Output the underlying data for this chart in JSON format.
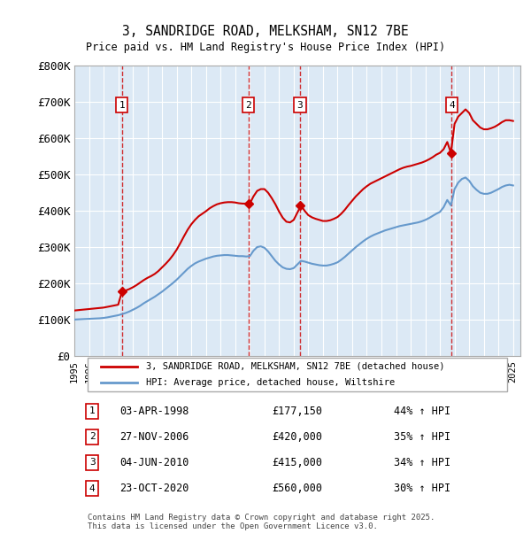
{
  "title": "3, SANDRIDGE ROAD, MELKSHAM, SN12 7BE",
  "subtitle": "Price paid vs. HM Land Registry's House Price Index (HPI)",
  "legend_line1": "3, SANDRIDGE ROAD, MELKSHAM, SN12 7BE (detached house)",
  "legend_line2": "HPI: Average price, detached house, Wiltshire",
  "footer": "Contains HM Land Registry data © Crown copyright and database right 2025.\nThis data is licensed under the Open Government Licence v3.0.",
  "ylim": [
    0,
    800000
  ],
  "yticks": [
    0,
    100000,
    200000,
    300000,
    400000,
    500000,
    600000,
    700000,
    800000
  ],
  "ytick_labels": [
    "£0",
    "£100K",
    "£200K",
    "£300K",
    "£400K",
    "£500K",
    "£600K",
    "£700K",
    "£800K"
  ],
  "xlim_start": 1995.0,
  "xlim_end": 2025.5,
  "background_color": "#dce9f5",
  "plot_background": "#dce9f5",
  "grid_color": "#ffffff",
  "red_color": "#cc0000",
  "blue_color": "#6699cc",
  "sale_points": [
    {
      "num": 1,
      "date": "03-APR-1998",
      "year": 1998.25,
      "price": 177150,
      "pct": "44%",
      "dir": "↑"
    },
    {
      "num": 2,
      "date": "27-NOV-2006",
      "year": 2006.9,
      "price": 420000,
      "pct": "35%",
      "dir": "↑"
    },
    {
      "num": 3,
      "date": "04-JUN-2010",
      "year": 2010.42,
      "price": 415000,
      "pct": "34%",
      "dir": "↑"
    },
    {
      "num": 4,
      "date": "23-OCT-2020",
      "year": 2020.8,
      "price": 560000,
      "pct": "30%",
      "dir": "↑"
    }
  ],
  "table_rows": [
    {
      "num": 1,
      "date": "03-APR-1998",
      "price": "£177,150",
      "pct": "44% ↑ HPI"
    },
    {
      "num": 2,
      "date": "27-NOV-2006",
      "price": "£420,000",
      "pct": "35% ↑ HPI"
    },
    {
      "num": 3,
      "date": "04-JUN-2010",
      "price": "£415,000",
      "pct": "34% ↑ HPI"
    },
    {
      "num": 4,
      "date": "23-OCT-2020",
      "price": "£560,000",
      "pct": "30% ↑ HPI"
    }
  ],
  "red_line_x": [
    1995.0,
    1995.25,
    1995.5,
    1995.75,
    1996.0,
    1996.25,
    1996.5,
    1996.75,
    1997.0,
    1997.25,
    1997.5,
    1997.75,
    1998.0,
    1998.25,
    1998.5,
    1998.75,
    1999.0,
    1999.25,
    1999.5,
    1999.75,
    2000.0,
    2000.25,
    2000.5,
    2000.75,
    2001.0,
    2001.25,
    2001.5,
    2001.75,
    2002.0,
    2002.25,
    2002.5,
    2002.75,
    2003.0,
    2003.25,
    2003.5,
    2003.75,
    2004.0,
    2004.25,
    2004.5,
    2004.75,
    2005.0,
    2005.25,
    2005.5,
    2005.75,
    2006.0,
    2006.25,
    2006.5,
    2006.75,
    2007.0,
    2007.25,
    2007.5,
    2007.75,
    2008.0,
    2008.25,
    2008.5,
    2008.75,
    2009.0,
    2009.25,
    2009.5,
    2009.75,
    2010.0,
    2010.25,
    2010.5,
    2010.75,
    2011.0,
    2011.25,
    2011.5,
    2011.75,
    2012.0,
    2012.25,
    2012.5,
    2012.75,
    2013.0,
    2013.25,
    2013.5,
    2013.75,
    2014.0,
    2014.25,
    2014.5,
    2014.75,
    2015.0,
    2015.25,
    2015.5,
    2015.75,
    2016.0,
    2016.25,
    2016.5,
    2016.75,
    2017.0,
    2017.25,
    2017.5,
    2017.75,
    2018.0,
    2018.25,
    2018.5,
    2018.75,
    2019.0,
    2019.25,
    2019.5,
    2019.75,
    2020.0,
    2020.25,
    2020.5,
    2020.75,
    2021.0,
    2021.25,
    2021.5,
    2021.75,
    2022.0,
    2022.25,
    2022.5,
    2022.75,
    2023.0,
    2023.25,
    2023.5,
    2023.75,
    2024.0,
    2024.25,
    2024.5,
    2024.75,
    2025.0
  ],
  "red_line_y": [
    125000,
    126000,
    127000,
    128000,
    129000,
    130000,
    131000,
    132000,
    133000,
    135000,
    137000,
    139000,
    141000,
    177150,
    180000,
    184000,
    189000,
    195000,
    202000,
    209000,
    215000,
    220000,
    226000,
    234000,
    244000,
    254000,
    265000,
    278000,
    293000,
    311000,
    330000,
    348000,
    363000,
    375000,
    385000,
    392000,
    399000,
    407000,
    413000,
    418000,
    421000,
    423000,
    424000,
    424000,
    423000,
    421000,
    420000,
    420000,
    420000,
    440000,
    455000,
    460000,
    460000,
    450000,
    435000,
    418000,
    398000,
    381000,
    370000,
    368000,
    375000,
    395000,
    415000,
    400000,
    388000,
    382000,
    378000,
    375000,
    372000,
    372000,
    374000,
    378000,
    383000,
    392000,
    403000,
    416000,
    428000,
    440000,
    450000,
    460000,
    468000,
    475000,
    480000,
    485000,
    490000,
    495000,
    500000,
    505000,
    510000,
    515000,
    519000,
    522000,
    524000,
    527000,
    530000,
    533000,
    537000,
    542000,
    548000,
    555000,
    560000,
    570000,
    590000,
    560000,
    640000,
    660000,
    670000,
    680000,
    670000,
    650000,
    640000,
    630000,
    625000,
    625000,
    628000,
    632000,
    638000,
    645000,
    650000,
    650000,
    648000
  ],
  "blue_line_x": [
    1995.0,
    1995.25,
    1995.5,
    1995.75,
    1996.0,
    1996.25,
    1996.5,
    1996.75,
    1997.0,
    1997.25,
    1997.5,
    1997.75,
    1998.0,
    1998.25,
    1998.5,
    1998.75,
    1999.0,
    1999.25,
    1999.5,
    1999.75,
    2000.0,
    2000.25,
    2000.5,
    2000.75,
    2001.0,
    2001.25,
    2001.5,
    2001.75,
    2002.0,
    2002.25,
    2002.5,
    2002.75,
    2003.0,
    2003.25,
    2003.5,
    2003.75,
    2004.0,
    2004.25,
    2004.5,
    2004.75,
    2005.0,
    2005.25,
    2005.5,
    2005.75,
    2006.0,
    2006.25,
    2006.5,
    2006.75,
    2007.0,
    2007.25,
    2007.5,
    2007.75,
    2008.0,
    2008.25,
    2008.5,
    2008.75,
    2009.0,
    2009.25,
    2009.5,
    2009.75,
    2010.0,
    2010.25,
    2010.5,
    2010.75,
    2011.0,
    2011.25,
    2011.5,
    2011.75,
    2012.0,
    2012.25,
    2012.5,
    2012.75,
    2013.0,
    2013.25,
    2013.5,
    2013.75,
    2014.0,
    2014.25,
    2014.5,
    2014.75,
    2015.0,
    2015.25,
    2015.5,
    2015.75,
    2016.0,
    2016.25,
    2016.5,
    2016.75,
    2017.0,
    2017.25,
    2017.5,
    2017.75,
    2018.0,
    2018.25,
    2018.5,
    2018.75,
    2019.0,
    2019.25,
    2019.5,
    2019.75,
    2020.0,
    2020.25,
    2020.5,
    2020.75,
    2021.0,
    2021.25,
    2021.5,
    2021.75,
    2022.0,
    2022.25,
    2022.5,
    2022.75,
    2023.0,
    2023.25,
    2023.5,
    2023.75,
    2024.0,
    2024.25,
    2024.5,
    2024.75,
    2025.0
  ],
  "blue_line_y": [
    100000,
    100500,
    101000,
    101500,
    102000,
    102500,
    103000,
    103500,
    104500,
    106000,
    108000,
    110000,
    112000,
    115000,
    118000,
    122000,
    127000,
    132000,
    138000,
    145000,
    151000,
    157000,
    163000,
    170000,
    177000,
    185000,
    193000,
    201000,
    210000,
    220000,
    230000,
    240000,
    248000,
    255000,
    260000,
    264000,
    268000,
    271000,
    274000,
    276000,
    277000,
    278000,
    278000,
    277000,
    276000,
    275000,
    275000,
    274000,
    275000,
    290000,
    300000,
    302000,
    298000,
    288000,
    275000,
    262000,
    252000,
    244000,
    240000,
    239000,
    242000,
    252000,
    262000,
    260000,
    257000,
    254000,
    252000,
    250000,
    249000,
    249000,
    251000,
    254000,
    258000,
    265000,
    273000,
    282000,
    291000,
    300000,
    308000,
    316000,
    323000,
    329000,
    334000,
    338000,
    342000,
    346000,
    349000,
    352000,
    355000,
    358000,
    360000,
    362000,
    364000,
    366000,
    368000,
    371000,
    375000,
    380000,
    386000,
    392000,
    397000,
    410000,
    430000,
    415000,
    460000,
    478000,
    488000,
    492000,
    483000,
    468000,
    458000,
    450000,
    447000,
    447000,
    450000,
    455000,
    460000,
    466000,
    470000,
    472000,
    470000
  ]
}
